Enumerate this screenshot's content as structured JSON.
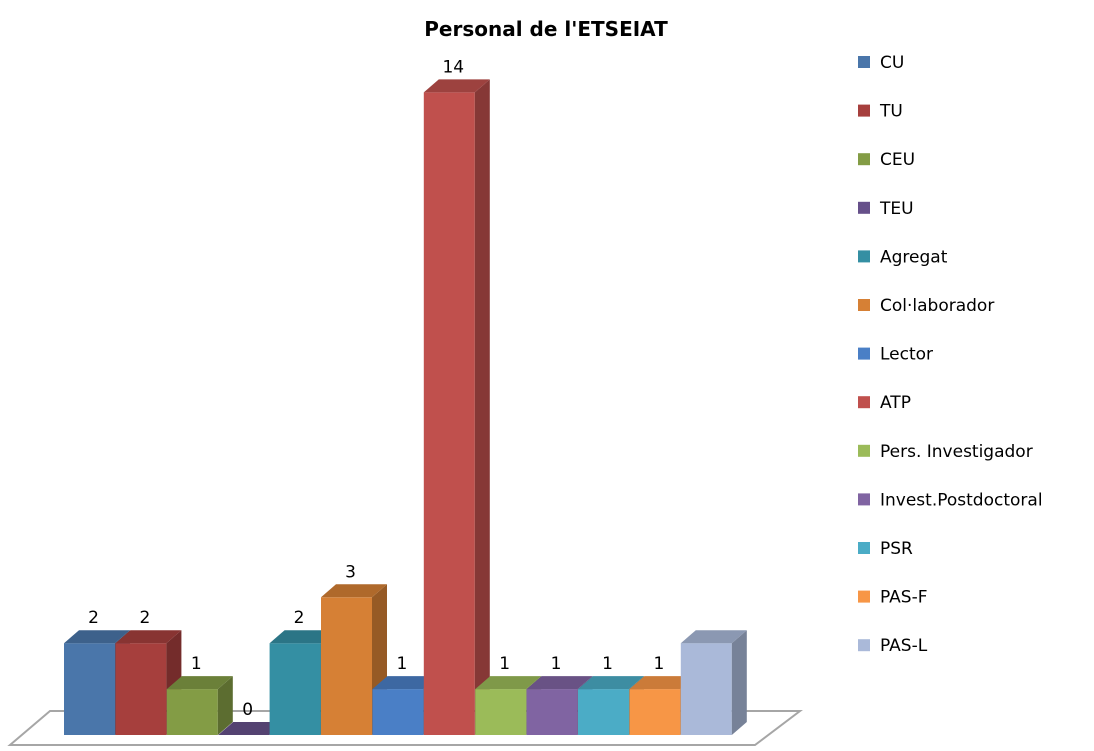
{
  "chart_data": {
    "type": "bar3d",
    "title": "Personal de l'ETSEIAT",
    "series": [
      {
        "name": "CU",
        "color": "#4a76aa",
        "values": [
          2
        ],
        "data_labels": true
      },
      {
        "name": "TU",
        "color": "#a63f3d",
        "values": [
          2
        ],
        "data_labels": true
      },
      {
        "name": "CEU",
        "color": "#839c45",
        "values": [
          1
        ],
        "data_labels": true
      },
      {
        "name": "TEU",
        "color": "#66508a",
        "values": [
          0
        ],
        "data_labels": true
      },
      {
        "name": "Agregat",
        "color": "#348fa3",
        "values": [
          2
        ],
        "data_labels": true
      },
      {
        "name": "Col·laborador",
        "color": "#d68035",
        "values": [
          3
        ],
        "data_labels": true
      },
      {
        "name": "Lector",
        "color": "#4a7fc6",
        "values": [
          1
        ],
        "data_labels": true
      },
      {
        "name": "ATP",
        "color": "#c0504d",
        "values": [
          14
        ],
        "data_labels": true
      },
      {
        "name": "Pers. Investigador",
        "color": "#9bbb59",
        "values": [
          1
        ],
        "data_labels": true
      },
      {
        "name": "Invest.Postdoctoral",
        "color": "#8064a2",
        "values": [
          1
        ],
        "data_labels": true
      },
      {
        "name": "PSR",
        "color": "#4bacc6",
        "values": [
          1
        ],
        "data_labels": true
      },
      {
        "name": "PAS-F",
        "color": "#f79646",
        "values": [
          1
        ],
        "data_labels": true
      },
      {
        "name": "PAS-L",
        "color": "#aab9d9",
        "values": [
          2
        ],
        "data_labels": false
      }
    ]
  }
}
